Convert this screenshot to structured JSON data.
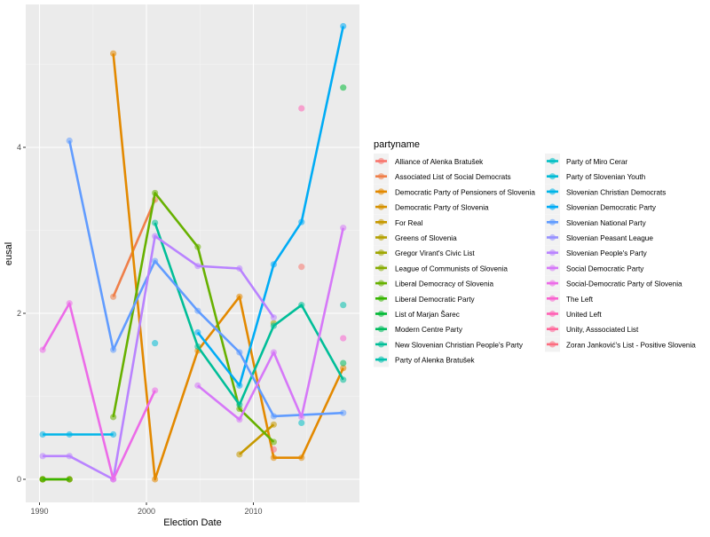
{
  "chart_data": {
    "type": "line",
    "title": "",
    "xlabel": "Election Date",
    "ylabel": "eusal",
    "xlim": [
      1988.8,
      2019.9
    ],
    "ylim": [
      -0.28,
      5.72
    ],
    "x_ticks": [
      {
        "value": 1990,
        "label": "1990"
      },
      {
        "value": 2000,
        "label": "2000"
      },
      {
        "value": 2010,
        "label": "2010"
      }
    ],
    "y_ticks": [
      {
        "value": 0,
        "label": "0"
      },
      {
        "value": 2,
        "label": "2"
      },
      {
        "value": 4,
        "label": "4"
      }
    ],
    "grid": true,
    "legend_title": "partyname",
    "legend_position": "right",
    "series": [
      {
        "name": "Alliance of Alenka Bratušek",
        "color": "#F8766D",
        "points": [
          [
            2014.5,
            2.56
          ]
        ]
      },
      {
        "name": "Associated List of Social Democrats",
        "color": "#EF7F49",
        "points": [
          [
            1996.9,
            2.2
          ],
          [
            2000.8,
            3.37
          ]
        ]
      },
      {
        "name": "Democratic Party of Pensioners of Slovenia",
        "color": "#E38900",
        "points": [
          [
            1996.9,
            5.13
          ],
          [
            2000.8,
            0
          ],
          [
            2004.8,
            1.55
          ],
          [
            2008.7,
            2.2
          ],
          [
            2011.9,
            0.26
          ],
          [
            2014.5,
            0.26
          ],
          [
            2018.4,
            1.34
          ]
        ]
      },
      {
        "name": "Democratic Party of Slovenia",
        "color": "#D69100",
        "points": [
          [
            1990.3,
            0
          ],
          [
            1992.8,
            0
          ]
        ]
      },
      {
        "name": "For Real",
        "color": "#C69900",
        "points": [
          [
            2008.7,
            0.3
          ],
          [
            2011.9,
            0.66
          ]
        ]
      },
      {
        "name": "Greens of Slovenia",
        "color": "#B4A000",
        "points": [
          [
            1990.3,
            0
          ],
          [
            1992.8,
            0
          ]
        ]
      },
      {
        "name": "Gregor Virant's Civic List",
        "color": "#9FA600",
        "points": [
          [
            2011.9,
            1.88
          ]
        ]
      },
      {
        "name": "League of Communists of Slovenia",
        "color": "#86AC00",
        "points": [
          [
            1990.3,
            0
          ]
        ]
      },
      {
        "name": "Liberal Democracy of Slovenia",
        "color": "#67B100",
        "points": [
          [
            1996.9,
            0.75
          ],
          [
            2000.8,
            3.45
          ],
          [
            2004.8,
            2.8
          ],
          [
            2008.7,
            0.85
          ],
          [
            2011.9,
            0.45
          ]
        ]
      },
      {
        "name": "Liberal Democratic Party",
        "color": "#37B500",
        "points": [
          [
            1990.3,
            0
          ],
          [
            1992.8,
            0
          ]
        ]
      },
      {
        "name": "List of Marjan Šarec",
        "color": "#00B934",
        "points": [
          [
            2018.4,
            4.72
          ]
        ]
      },
      {
        "name": "Modern Centre Party",
        "color": "#00BC5E",
        "points": [
          [
            2018.4,
            1.4
          ]
        ]
      },
      {
        "name": "New Slovenian Christian People's Party",
        "color": "#00BE98",
        "points": [
          [
            2000.8,
            3.09
          ],
          [
            2004.8,
            1.6
          ],
          [
            2008.7,
            0.9
          ],
          [
            2011.9,
            1.85
          ],
          [
            2014.5,
            2.1
          ],
          [
            2018.4,
            1.2
          ]
        ]
      },
      {
        "name": "Party of Alenka Bratušek",
        "color": "#00C0AD",
        "points": [
          [
            2018.4,
            2.1
          ]
        ]
      },
      {
        "name": "Party of Miro Cerar",
        "color": "#00BFC4",
        "points": [
          [
            2014.5,
            0.68
          ]
        ]
      },
      {
        "name": "Party of Slovenian Youth",
        "color": "#00BBD6",
        "points": [
          [
            2000.8,
            1.64
          ]
        ]
      },
      {
        "name": "Slovenian Christian Democrats",
        "color": "#00B5E8",
        "points": [
          [
            1990.3,
            0.54
          ],
          [
            1992.8,
            0.54
          ],
          [
            1996.9,
            0.54
          ]
        ]
      },
      {
        "name": "Slovenian Democratic Party",
        "color": "#00ACF5",
        "points": [
          [
            2004.8,
            1.77
          ],
          [
            2008.7,
            1.13
          ],
          [
            2011.9,
            2.59
          ],
          [
            2014.5,
            3.1
          ],
          [
            2018.4,
            5.46
          ]
        ]
      },
      {
        "name": "Slovenian National Party",
        "color": "#619CFF",
        "points": [
          [
            1992.8,
            4.08
          ],
          [
            1996.9,
            1.56
          ],
          [
            2000.8,
            2.63
          ],
          [
            2004.8,
            2.03
          ],
          [
            2008.7,
            1.53
          ],
          [
            2011.9,
            0.76
          ],
          [
            2018.4,
            0.8
          ]
        ]
      },
      {
        "name": "Slovenian Peasant League",
        "color": "#9590FF",
        "points": []
      },
      {
        "name": "Slovenian People's Party",
        "color": "#B983FF",
        "points": [
          [
            1990.3,
            0.28
          ],
          [
            1992.8,
            0.28
          ],
          [
            1996.9,
            0
          ],
          [
            2000.8,
            2.93
          ],
          [
            2004.8,
            2.57
          ],
          [
            2008.7,
            2.54
          ],
          [
            2011.9,
            1.95
          ]
        ]
      },
      {
        "name": "Social Democratic Party",
        "color": "#D678F8",
        "points": [
          [
            2004.8,
            1.13
          ],
          [
            2008.7,
            0.72
          ],
          [
            2011.9,
            1.53
          ],
          [
            2014.5,
            0.75
          ],
          [
            2018.4,
            3.03
          ]
        ]
      },
      {
        "name": "Social-Democratic Party of Slovenia",
        "color": "#EC6BE8",
        "points": [
          [
            1990.3,
            1.56
          ],
          [
            1992.8,
            2.12
          ],
          [
            1996.9,
            0
          ],
          [
            2000.8,
            1.07
          ]
        ]
      },
      {
        "name": "The Left",
        "color": "#F963CF",
        "points": [
          [
            2018.4,
            1.7
          ]
        ]
      },
      {
        "name": "United Left",
        "color": "#FF62B5",
        "points": [
          [
            2014.5,
            4.47
          ]
        ]
      },
      {
        "name": "Unity, Asssociated List",
        "color": "#FF6699",
        "points": []
      },
      {
        "name": "Zoran Janković's List - Positive Slovenia",
        "color": "#FC6E80",
        "points": [
          [
            2011.9,
            0.36
          ]
        ]
      }
    ]
  }
}
